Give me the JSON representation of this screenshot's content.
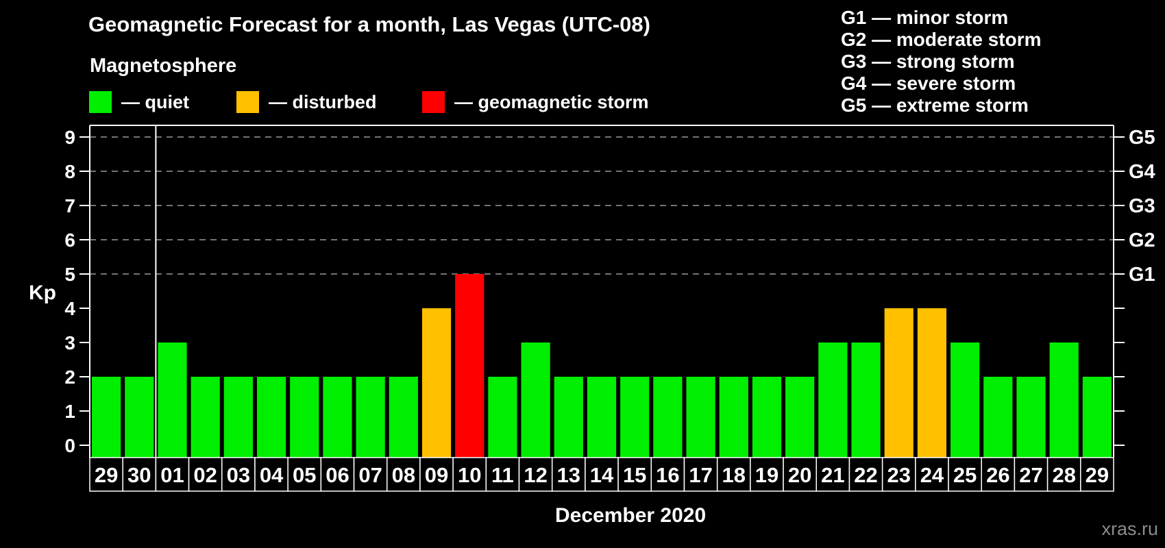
{
  "header": {
    "title": "Geomagnetic Forecast for a month, Las Vegas (UTC-08)",
    "subtitle": "Magnetosphere"
  },
  "legend": {
    "items": [
      {
        "text": "— quiet",
        "status": "quiet",
        "color": "#00ef00"
      },
      {
        "text": "— disturbed",
        "status": "disturbed",
        "color": "#ffc000"
      },
      {
        "text": "— geomagnetic storm",
        "status": "storm",
        "color": "#ff0000"
      }
    ]
  },
  "g_legend": {
    "lines": [
      {
        "text": "G1 — minor storm"
      },
      {
        "text": "G2 — moderate storm"
      },
      {
        "text": "G3 — strong storm"
      },
      {
        "text": "G4 — severe storm"
      },
      {
        "text": "G5 — extreme storm"
      }
    ]
  },
  "watermark": "xras.ru",
  "chart_data": {
    "type": "bar",
    "title": "Geomagnetic Forecast for a month, Las Vegas (UTC-08)",
    "ylabel": "Kp",
    "xlabel": "December 2020",
    "ylim": [
      0,
      9
    ],
    "yticks": [
      0,
      1,
      2,
      3,
      4,
      5,
      6,
      7,
      8,
      9
    ],
    "gridlines_at": [
      5,
      6,
      7,
      8,
      9
    ],
    "grid": "dashed horizontal lines at G-storm levels only",
    "legend_position": "top",
    "right_axis": [
      {
        "value": 5,
        "label": "G1"
      },
      {
        "value": 6,
        "label": "G2"
      },
      {
        "value": 7,
        "label": "G3"
      },
      {
        "value": 8,
        "label": "G4"
      },
      {
        "value": 9,
        "label": "G5"
      }
    ],
    "categories": [
      "29",
      "30",
      "01",
      "02",
      "03",
      "04",
      "05",
      "06",
      "07",
      "08",
      "09",
      "10",
      "11",
      "12",
      "13",
      "14",
      "15",
      "16",
      "17",
      "18",
      "19",
      "20",
      "21",
      "22",
      "23",
      "24",
      "25",
      "26",
      "27",
      "28",
      "29"
    ],
    "values": [
      2,
      2,
      3,
      2,
      2,
      2,
      2,
      2,
      2,
      2,
      4,
      5,
      2,
      3,
      2,
      2,
      2,
      2,
      2,
      2,
      2,
      2,
      3,
      3,
      4,
      4,
      3,
      2,
      2,
      3,
      2
    ],
    "statuses": [
      "quiet",
      "quiet",
      "quiet",
      "quiet",
      "quiet",
      "quiet",
      "quiet",
      "quiet",
      "quiet",
      "quiet",
      "disturbed",
      "storm",
      "quiet",
      "quiet",
      "quiet",
      "quiet",
      "quiet",
      "quiet",
      "quiet",
      "quiet",
      "quiet",
      "quiet",
      "quiet",
      "quiet",
      "disturbed",
      "disturbed",
      "quiet",
      "quiet",
      "quiet",
      "quiet",
      "quiet"
    ],
    "status_colors": {
      "quiet": "#00ef00",
      "disturbed": "#ffc000",
      "storm": "#ff0000"
    },
    "month_separator_after_index": 1,
    "axis_color": "#ffffff",
    "gridline_color": "#9a9a9a",
    "background_color": "#000000"
  }
}
